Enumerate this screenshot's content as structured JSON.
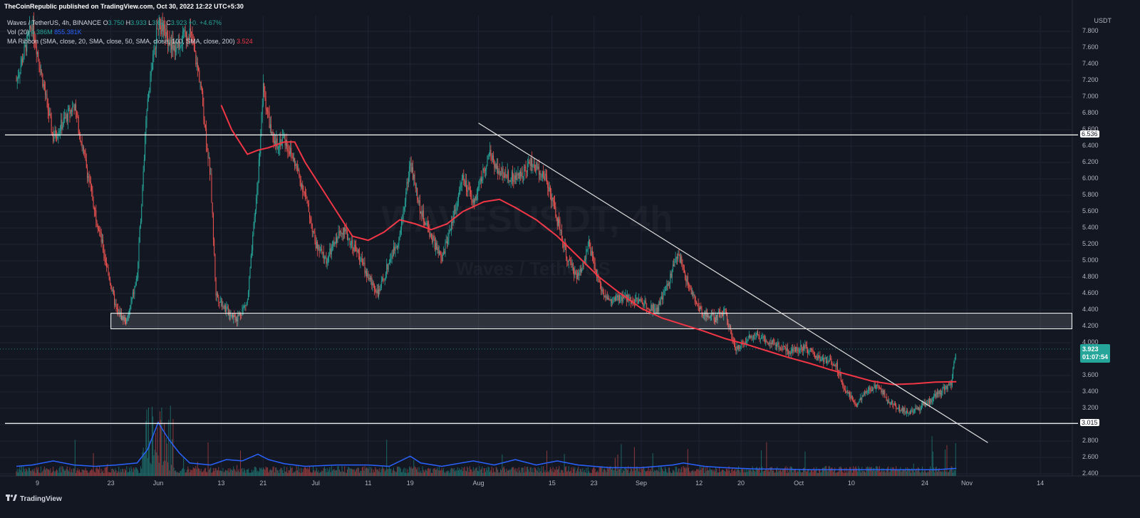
{
  "publisher": "TheCoinRepublic published on TradingView.com, Oct 30, 2022 12:22 UTC+5:30",
  "legend": {
    "symbol": "Waves / TetherUS, 4h, BINANCE",
    "o_label": "O",
    "o": "3.750",
    "h_label": "H",
    "h": "3.933",
    "l_label": "L",
    "l": "3.62",
    "c_label": "C",
    "c": "3.923",
    "change": "+0.",
    "change_pct": "+4.67%",
    "vol_label": "Vol (20)",
    "vol_value": "4.386M",
    "vol_ma": "855.381K",
    "ma_label": "MA Ribbon (SMA, close, 20, SMA, close, 50, SMA, close, 100, SMA, close, 200)",
    "ma_value": "3.524"
  },
  "watermark": "WAVESUSDT, 4h",
  "watermark_sub": "Waves / TetherUS",
  "footer_brand": "TradingView",
  "colors": {
    "background": "#131722",
    "up": "#26a69a",
    "down": "#ef5350",
    "ma": "#f23645",
    "volume_ma": "#2962ff",
    "lines": "#ffffff",
    "zone": "rgba(255,255,255,0.12)"
  },
  "chart_data": {
    "type": "candlestick",
    "currency": "USDT",
    "y_ticks": [
      "7.800",
      "7.600",
      "7.400",
      "7.200",
      "7.000",
      "6.800",
      "6.600",
      "6.400",
      "6.200",
      "6.000",
      "5.800",
      "5.600",
      "5.400",
      "5.200",
      "5.000",
      "4.800",
      "4.600",
      "4.400",
      "4.200",
      "4.000",
      "3.800",
      "3.600",
      "3.400",
      "3.200",
      "3.000",
      "2.800",
      "2.600",
      "2.400"
    ],
    "y_tick_values": [
      7.8,
      7.6,
      7.4,
      7.2,
      7.0,
      6.8,
      6.6,
      6.4,
      6.2,
      6.0,
      5.8,
      5.6,
      5.4,
      5.2,
      5.0,
      4.8,
      4.6,
      4.4,
      4.2,
      4.0,
      3.8,
      3.6,
      3.4,
      3.2,
      3.0,
      2.8,
      2.6,
      2.4
    ],
    "ylim": [
      2.4,
      7.9
    ],
    "x_ticks": [
      "9",
      "23",
      "Jun",
      "13",
      "21",
      "Jul",
      "11",
      "19",
      "Aug",
      "15",
      "23",
      "Sep",
      "12",
      "20",
      "Oct",
      "10",
      "24",
      "Nov",
      "14"
    ],
    "x_tick_days": [
      9,
      23,
      32,
      44,
      52,
      62,
      72,
      80,
      93,
      107,
      115,
      124,
      135,
      143,
      154,
      164,
      178,
      186,
      200
    ],
    "x_range_days": [
      5,
      206
    ],
    "price_path": [
      [
        5,
        7.2
      ],
      [
        8,
        7.9
      ],
      [
        12,
        6.5
      ],
      [
        16,
        6.9
      ],
      [
        20,
        5.6
      ],
      [
        24,
        4.4
      ],
      [
        26,
        4.25
      ],
      [
        28,
        4.8
      ],
      [
        30,
        7.0
      ],
      [
        32,
        7.9
      ],
      [
        35,
        7.6
      ],
      [
        38,
        7.8
      ],
      [
        40,
        7.2
      ],
      [
        42,
        6.0
      ],
      [
        43,
        4.6
      ],
      [
        45,
        4.4
      ],
      [
        47,
        4.3
      ],
      [
        49,
        4.5
      ],
      [
        51,
        6.0
      ],
      [
        52,
        7.1
      ],
      [
        54,
        6.4
      ],
      [
        56,
        6.5
      ],
      [
        58,
        6.2
      ],
      [
        60,
        5.8
      ],
      [
        62,
        5.2
      ],
      [
        64,
        5.0
      ],
      [
        67,
        5.4
      ],
      [
        70,
        5.1
      ],
      [
        72,
        4.8
      ],
      [
        74,
        4.6
      ],
      [
        76,
        5.0
      ],
      [
        78,
        5.3
      ],
      [
        80,
        6.2
      ],
      [
        82,
        5.6
      ],
      [
        84,
        5.3
      ],
      [
        86,
        5.0
      ],
      [
        88,
        5.5
      ],
      [
        90,
        6.0
      ],
      [
        92,
        5.7
      ],
      [
        95,
        6.3
      ],
      [
        97,
        6.1
      ],
      [
        100,
        6.0
      ],
      [
        103,
        6.2
      ],
      [
        106,
        6.0
      ],
      [
        108,
        5.5
      ],
      [
        110,
        5.0
      ],
      [
        112,
        4.8
      ],
      [
        114,
        5.2
      ],
      [
        116,
        4.7
      ],
      [
        118,
        4.5
      ],
      [
        121,
        4.55
      ],
      [
        124,
        4.5
      ],
      [
        127,
        4.4
      ],
      [
        129,
        4.7
      ],
      [
        131,
        5.1
      ],
      [
        133,
        4.7
      ],
      [
        135,
        4.4
      ],
      [
        138,
        4.3
      ],
      [
        140,
        4.4
      ],
      [
        142,
        3.9
      ],
      [
        144,
        4.05
      ],
      [
        146,
        4.1
      ],
      [
        149,
        4.0
      ],
      [
        152,
        3.9
      ],
      [
        155,
        3.95
      ],
      [
        158,
        3.8
      ],
      [
        161,
        3.75
      ],
      [
        163,
        3.4
      ],
      [
        165,
        3.25
      ],
      [
        167,
        3.4
      ],
      [
        169,
        3.5
      ],
      [
        171,
        3.3
      ],
      [
        173,
        3.2
      ],
      [
        175,
        3.15
      ],
      [
        177,
        3.2
      ],
      [
        179,
        3.3
      ],
      [
        181,
        3.4
      ],
      [
        183,
        3.5
      ],
      [
        184,
        3.92
      ]
    ],
    "ma_path": [
      [
        44,
        6.9
      ],
      [
        46,
        6.6
      ],
      [
        49,
        6.3
      ],
      [
        51,
        6.35
      ],
      [
        53,
        6.38
      ],
      [
        56,
        6.45
      ],
      [
        58,
        6.45
      ],
      [
        60,
        6.2
      ],
      [
        63,
        5.9
      ],
      [
        66,
        5.6
      ],
      [
        69,
        5.3
      ],
      [
        72,
        5.25
      ],
      [
        75,
        5.35
      ],
      [
        78,
        5.5
      ],
      [
        81,
        5.45
      ],
      [
        84,
        5.38
      ],
      [
        87,
        5.45
      ],
      [
        90,
        5.6
      ],
      [
        94,
        5.72
      ],
      [
        97,
        5.75
      ],
      [
        100,
        5.65
      ],
      [
        104,
        5.5
      ],
      [
        108,
        5.3
      ],
      [
        112,
        5.05
      ],
      [
        116,
        4.8
      ],
      [
        120,
        4.6
      ],
      [
        124,
        4.42
      ],
      [
        128,
        4.3
      ],
      [
        132,
        4.22
      ],
      [
        136,
        4.14
      ],
      [
        140,
        4.05
      ],
      [
        144,
        3.98
      ],
      [
        148,
        3.9
      ],
      [
        152,
        3.82
      ],
      [
        156,
        3.75
      ],
      [
        160,
        3.67
      ],
      [
        164,
        3.6
      ],
      [
        168,
        3.53
      ],
      [
        172,
        3.49
      ],
      [
        176,
        3.5
      ],
      [
        180,
        3.52
      ],
      [
        184,
        3.524
      ]
    ],
    "volume_ma_path": [
      [
        5,
        0.1
      ],
      [
        8,
        0.12
      ],
      [
        12,
        0.18
      ],
      [
        16,
        0.12
      ],
      [
        20,
        0.1
      ],
      [
        24,
        0.12
      ],
      [
        28,
        0.15
      ],
      [
        30,
        0.35
      ],
      [
        32,
        0.75
      ],
      [
        34,
        0.5
      ],
      [
        36,
        0.3
      ],
      [
        38,
        0.15
      ],
      [
        42,
        0.12
      ],
      [
        45,
        0.2
      ],
      [
        48,
        0.18
      ],
      [
        51,
        0.28
      ],
      [
        53,
        0.2
      ],
      [
        56,
        0.14
      ],
      [
        60,
        0.1
      ],
      [
        66,
        0.12
      ],
      [
        72,
        0.12
      ],
      [
        76,
        0.1
      ],
      [
        80,
        0.25
      ],
      [
        82,
        0.15
      ],
      [
        86,
        0.1
      ],
      [
        92,
        0.18
      ],
      [
        96,
        0.12
      ],
      [
        100,
        0.2
      ],
      [
        104,
        0.12
      ],
      [
        108,
        0.18
      ],
      [
        112,
        0.12
      ],
      [
        118,
        0.08
      ],
      [
        124,
        0.08
      ],
      [
        130,
        0.12
      ],
      [
        132,
        0.15
      ],
      [
        136,
        0.1
      ],
      [
        140,
        0.08
      ],
      [
        146,
        0.06
      ],
      [
        150,
        0.06
      ],
      [
        156,
        0.05
      ],
      [
        162,
        0.05
      ],
      [
        168,
        0.05
      ],
      [
        172,
        0.05
      ],
      [
        176,
        0.05
      ],
      [
        180,
        0.05
      ],
      [
        184,
        0.07
      ]
    ],
    "horizontal_levels": [
      {
        "price": 6.536,
        "label": "6.536"
      },
      {
        "price": 3.015,
        "label": "3.015"
      }
    ],
    "support_zone": {
      "from_day": 23,
      "to_day": 206,
      "low": 4.17,
      "high": 4.36
    },
    "trendline": {
      "start": [
        93,
        6.68
      ],
      "end": [
        190,
        2.78
      ]
    },
    "current_price": {
      "label": "3.923",
      "timer": "01:07:54"
    }
  }
}
